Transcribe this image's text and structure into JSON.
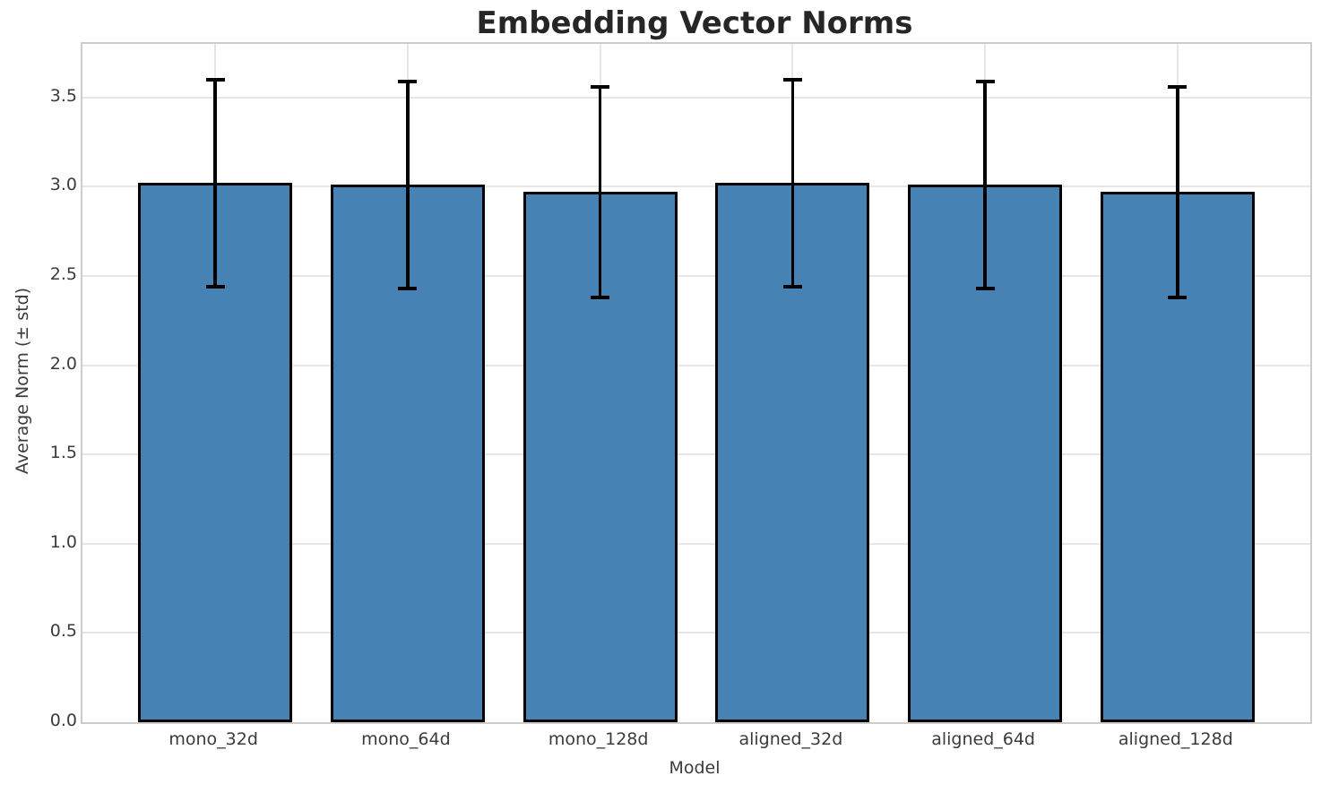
{
  "chart_data": {
    "type": "bar",
    "title": "Embedding Vector Norms",
    "xlabel": "Model",
    "ylabel": "Average Norm (± std)",
    "categories": [
      "mono_32d",
      "mono_64d",
      "mono_128d",
      "aligned_32d",
      "aligned_64d",
      "aligned_128d"
    ],
    "series": [
      {
        "name": "Average Norm",
        "values": [
          3.02,
          3.01,
          2.97,
          3.02,
          3.01,
          2.97
        ],
        "errors": [
          0.58,
          0.58,
          0.59,
          0.58,
          0.58,
          0.59
        ]
      }
    ],
    "error_bar_upper": [
      3.6,
      3.59,
      3.56,
      3.6,
      3.59,
      3.56
    ],
    "error_bar_lower": [
      2.44,
      2.43,
      2.38,
      2.44,
      2.43,
      2.38
    ],
    "ylim": [
      0.0,
      3.8
    ],
    "yticks": [
      0.0,
      0.5,
      1.0,
      1.5,
      2.0,
      2.5,
      3.0,
      3.5
    ],
    "ytick_labels": [
      "0.0",
      "0.5",
      "1.0",
      "1.5",
      "2.0",
      "2.5",
      "3.0",
      "3.5"
    ],
    "grid": true,
    "legend": "none",
    "colors": {
      "bar_fill": "#4682B4",
      "bar_edge": "#000000",
      "error_bar": "#000000",
      "grid": "#e6e6e6",
      "spine": "#cccccc",
      "title_text": "#262626",
      "tick_text": "#3b3b3b"
    }
  }
}
